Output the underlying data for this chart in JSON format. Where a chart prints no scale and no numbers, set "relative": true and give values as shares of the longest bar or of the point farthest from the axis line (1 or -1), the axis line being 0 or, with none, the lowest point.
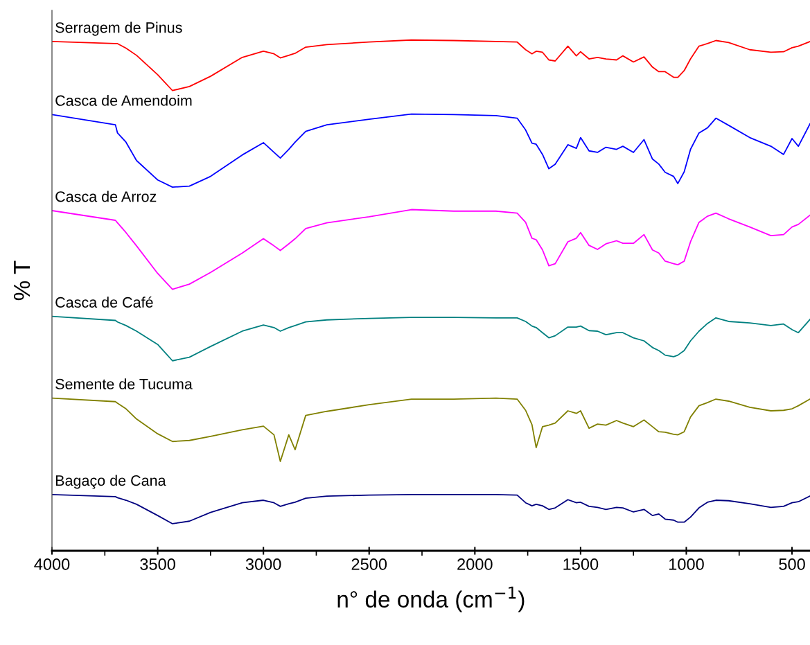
{
  "chart_data": {
    "type": "line",
    "relative": true,
    "xlabel": "n° de onda (cm$^{−1}$)",
    "ylabel": "% T",
    "xlim": [
      4000,
      415
    ],
    "xticks": [
      4000,
      3500,
      3000,
      2500,
      2000,
      1500,
      1000,
      500
    ],
    "grid": false,
    "legend": false,
    "marker": "none",
    "line_style": "solid",
    "x": [
      4000,
      3700,
      3690,
      3650,
      3600,
      3500,
      3430,
      3350,
      3250,
      3100,
      3000,
      2950,
      2920,
      2880,
      2850,
      2800,
      2700,
      2500,
      2300,
      2100,
      1900,
      1800,
      1760,
      1730,
      1710,
      1680,
      1650,
      1620,
      1560,
      1520,
      1500,
      1460,
      1420,
      1380,
      1330,
      1300,
      1250,
      1200,
      1160,
      1130,
      1100,
      1060,
      1040,
      1010,
      980,
      940,
      900,
      860,
      800,
      700,
      600,
      540,
      500,
      470,
      415
    ],
    "series": [
      {
        "name": "Serragem de Pinus",
        "color": "#ff0000",
        "values": [
          0.997,
          0.993,
          0.993,
          0.984,
          0.97,
          0.932,
          0.901,
          0.909,
          0.929,
          0.966,
          0.978,
          0.973,
          0.965,
          0.97,
          0.974,
          0.986,
          0.991,
          0.996,
          1.0,
          0.999,
          0.997,
          0.996,
          0.981,
          0.973,
          0.978,
          0.976,
          0.961,
          0.959,
          0.988,
          0.969,
          0.977,
          0.963,
          0.966,
          0.963,
          0.961,
          0.969,
          0.957,
          0.967,
          0.947,
          0.938,
          0.938,
          0.927,
          0.927,
          0.94,
          0.963,
          0.988,
          0.993,
          0.999,
          0.995,
          0.981,
          0.976,
          0.977,
          0.985,
          0.988,
          0.997
        ]
      },
      {
        "name": "Casca de Amendoim",
        "color": "#0000ff",
        "values": [
          0.854,
          0.834,
          0.818,
          0.8,
          0.764,
          0.726,
          0.712,
          0.714,
          0.733,
          0.775,
          0.799,
          0.78,
          0.769,
          0.786,
          0.8,
          0.821,
          0.834,
          0.845,
          0.855,
          0.854,
          0.852,
          0.847,
          0.824,
          0.798,
          0.796,
          0.776,
          0.748,
          0.757,
          0.795,
          0.788,
          0.809,
          0.783,
          0.78,
          0.79,
          0.786,
          0.792,
          0.78,
          0.805,
          0.767,
          0.757,
          0.741,
          0.733,
          0.719,
          0.742,
          0.786,
          0.818,
          0.828,
          0.847,
          0.833,
          0.809,
          0.792,
          0.776,
          0.807,
          0.792,
          0.836
        ]
      },
      {
        "name": "Casca de Arroz",
        "color": "#ff00ff",
        "values": [
          0.666,
          0.647,
          0.642,
          0.623,
          0.597,
          0.543,
          0.512,
          0.522,
          0.545,
          0.583,
          0.611,
          0.597,
          0.588,
          0.601,
          0.611,
          0.631,
          0.642,
          0.654,
          0.668,
          0.665,
          0.665,
          0.661,
          0.643,
          0.612,
          0.609,
          0.589,
          0.558,
          0.562,
          0.605,
          0.612,
          0.623,
          0.598,
          0.59,
          0.601,
          0.607,
          0.602,
          0.602,
          0.619,
          0.589,
          0.583,
          0.567,
          0.562,
          0.56,
          0.567,
          0.605,
          0.643,
          0.655,
          0.661,
          0.65,
          0.634,
          0.617,
          0.619,
          0.634,
          0.639,
          0.657
        ]
      },
      {
        "name": "Casca de Café",
        "color": "#008080",
        "values": [
          0.459,
          0.451,
          0.448,
          0.441,
          0.43,
          0.404,
          0.372,
          0.379,
          0.4,
          0.43,
          0.442,
          0.437,
          0.43,
          0.437,
          0.441,
          0.448,
          0.452,
          0.455,
          0.457,
          0.457,
          0.456,
          0.456,
          0.449,
          0.44,
          0.437,
          0.427,
          0.417,
          0.421,
          0.438,
          0.438,
          0.44,
          0.431,
          0.43,
          0.423,
          0.427,
          0.427,
          0.417,
          0.411,
          0.398,
          0.392,
          0.383,
          0.38,
          0.383,
          0.392,
          0.411,
          0.43,
          0.445,
          0.456,
          0.449,
          0.446,
          0.441,
          0.444,
          0.433,
          0.427,
          0.453
        ]
      },
      {
        "name": "Semente de Tucuma",
        "color": "#808000",
        "values": [
          0.299,
          0.292,
          0.289,
          0.278,
          0.258,
          0.229,
          0.214,
          0.216,
          0.224,
          0.237,
          0.244,
          0.227,
          0.175,
          0.227,
          0.198,
          0.265,
          0.273,
          0.286,
          0.297,
          0.297,
          0.299,
          0.297,
          0.275,
          0.247,
          0.202,
          0.243,
          0.246,
          0.25,
          0.274,
          0.269,
          0.274,
          0.24,
          0.248,
          0.246,
          0.255,
          0.25,
          0.243,
          0.256,
          0.243,
          0.233,
          0.232,
          0.228,
          0.227,
          0.233,
          0.262,
          0.284,
          0.29,
          0.297,
          0.293,
          0.281,
          0.274,
          0.275,
          0.278,
          0.284,
          0.297
        ]
      },
      {
        "name": "Bagaço de Cana",
        "color": "#000080",
        "values": [
          0.11,
          0.106,
          0.104,
          0.099,
          0.091,
          0.069,
          0.053,
          0.058,
          0.075,
          0.094,
          0.099,
          0.094,
          0.087,
          0.092,
          0.095,
          0.103,
          0.107,
          0.109,
          0.11,
          0.11,
          0.11,
          0.109,
          0.094,
          0.088,
          0.091,
          0.088,
          0.081,
          0.084,
          0.1,
          0.094,
          0.095,
          0.087,
          0.085,
          0.081,
          0.085,
          0.084,
          0.076,
          0.081,
          0.069,
          0.072,
          0.062,
          0.06,
          0.056,
          0.056,
          0.066,
          0.084,
          0.095,
          0.099,
          0.098,
          0.092,
          0.085,
          0.087,
          0.094,
          0.096,
          0.107
        ]
      }
    ]
  }
}
